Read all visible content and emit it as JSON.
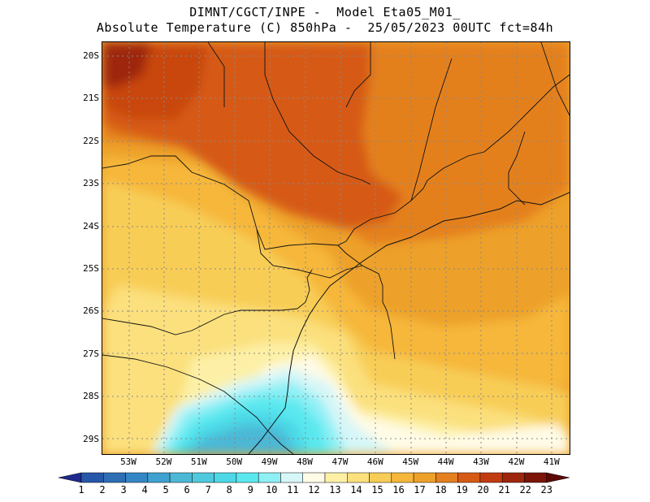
{
  "title": {
    "line1": "DIMNT/CGCT/INPE -  Model Eta05_M01_",
    "line2": "Absolute Temperature (C) 850hPa -  25/05/2023 00UTC fct=84h"
  },
  "map": {
    "lat_labels": [
      "20S",
      "21S",
      "22S",
      "23S",
      "24S",
      "25S",
      "26S",
      "27S",
      "28S",
      "29S"
    ],
    "lon_labels": [
      "53W",
      "52W",
      "51W",
      "50W",
      "49W",
      "48W",
      "47W",
      "46W",
      "45W",
      "44W",
      "43W",
      "42W",
      "41W"
    ]
  },
  "colorbar": {
    "labels": [
      "1",
      "2",
      "3",
      "4",
      "5",
      "6",
      "7",
      "8",
      "9",
      "10",
      "11",
      "12",
      "13",
      "14",
      "15",
      "16",
      "17",
      "18",
      "19",
      "20",
      "21",
      "22",
      "23"
    ],
    "colors": [
      "#1f2a8c",
      "#2757a8",
      "#2e6eb5",
      "#3487c4",
      "#3fa1cf",
      "#4cb8d6",
      "#4fc9dd",
      "#4cd8e6",
      "#5ae8ef",
      "#8ef0f5",
      "#d6f6f8",
      "#fffbe6",
      "#fdf0a6",
      "#fbe07d",
      "#f8cd56",
      "#f6b73a",
      "#eda12a",
      "#e4801f",
      "#d65a16",
      "#c23b10",
      "#9e260c",
      "#7c1408",
      "#5e0805"
    ]
  }
}
